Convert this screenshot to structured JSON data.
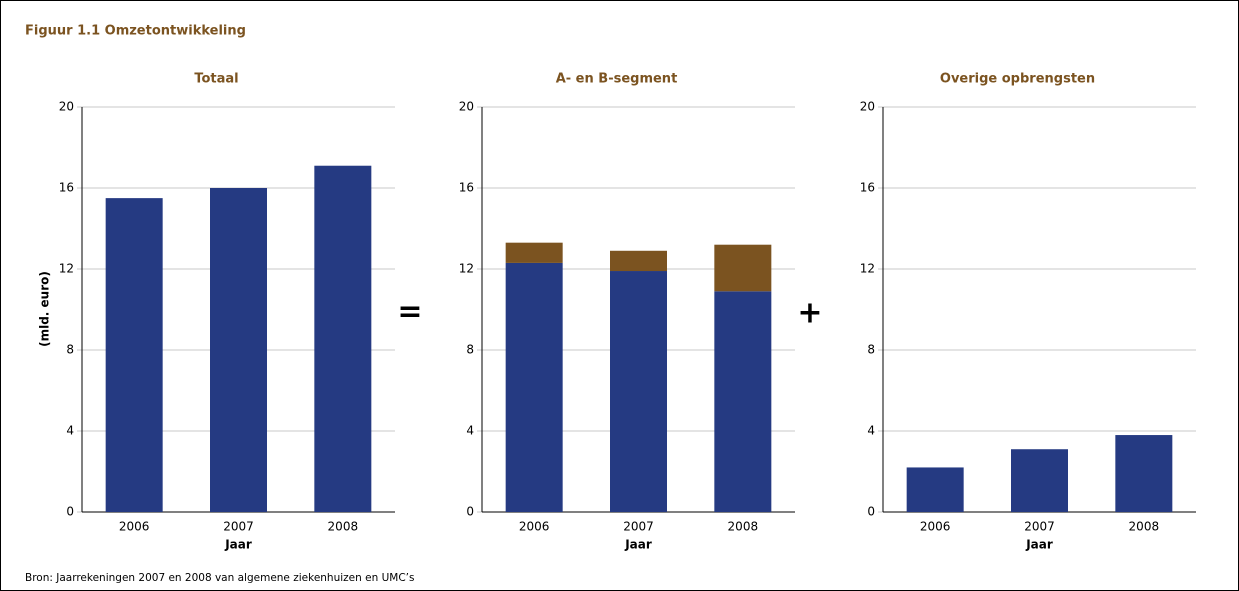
{
  "figure_title": "Figuur 1.1 Omzetontwikkeling",
  "source": "Bron: Jaarrekeningen 2007 en 2008 van algemene ziekenhuizen en UMC’s",
  "operators": [
    "=",
    "+"
  ],
  "chart_data": [
    {
      "type": "bar",
      "title": "Totaal",
      "x_label": "Jaar",
      "y_label": "(mld. euro)",
      "categories": [
        "2006",
        "2007",
        "2008"
      ],
      "series": [
        {
          "color": "#253a82",
          "values": [
            15.5,
            16.0,
            17.1
          ]
        }
      ],
      "ylim": [
        0,
        20
      ],
      "yticks": [
        0,
        4,
        8,
        12,
        16,
        20
      ],
      "grid": true
    },
    {
      "type": "stacked_bar",
      "title": "A- en B-segment",
      "x_label": "Jaar",
      "categories": [
        "2006",
        "2007",
        "2008"
      ],
      "series": [
        {
          "color": "#253a82",
          "values": [
            12.3,
            11.9,
            10.9
          ]
        },
        {
          "color": "#7b5320",
          "values": [
            1.0,
            1.0,
            2.3
          ]
        }
      ],
      "ylim": [
        0,
        20
      ],
      "yticks": [
        0,
        4,
        8,
        12,
        16,
        20
      ],
      "grid": true
    },
    {
      "type": "bar",
      "title": "Overige opbrengsten",
      "x_label": "Jaar",
      "categories": [
        "2006",
        "2007",
        "2008"
      ],
      "series": [
        {
          "color": "#253a82",
          "values": [
            2.2,
            3.1,
            3.8
          ]
        }
      ],
      "ylim": [
        0,
        20
      ],
      "yticks": [
        0,
        4,
        8,
        12,
        16,
        20
      ],
      "grid": true
    }
  ]
}
